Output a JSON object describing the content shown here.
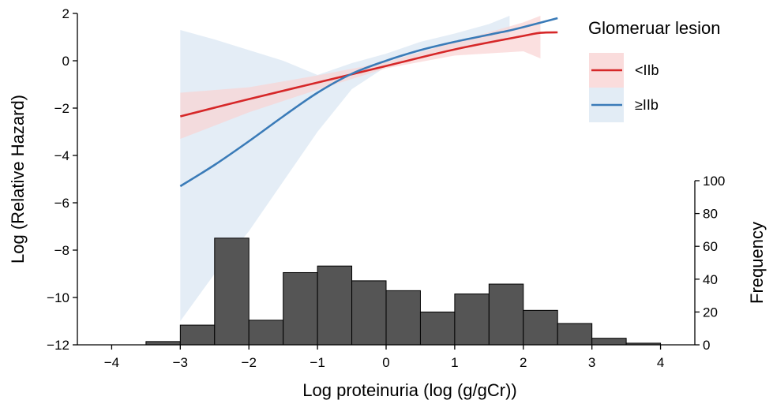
{
  "chart_data": {
    "type": "line",
    "xlabel": "Log proteinuria (log (g/gCr))",
    "ylabel": "Log (Relative Hazard)",
    "y2label": "Frequency",
    "xlim": [
      -4.5,
      4.5
    ],
    "ylim": [
      -12,
      2
    ],
    "y2lim": [
      0,
      100
    ],
    "x_ticks": [
      -4,
      -3,
      -2,
      -1,
      0,
      1,
      2,
      3,
      4
    ],
    "y_ticks": [
      2,
      0,
      -2,
      -4,
      -6,
      -8,
      -10,
      -12
    ],
    "y2_ticks": [
      100,
      80,
      60,
      40,
      20,
      0
    ],
    "grid": false,
    "legend": {
      "title": "Glomeruar lesion",
      "position": "top-right",
      "entries": [
        "<IIb",
        "≥IIb"
      ]
    },
    "series": [
      {
        "name": "<IIb",
        "color": "#d62728",
        "band_color": "#f9d3d3",
        "x": [
          -3.0,
          -2.0,
          -1.0,
          0.0,
          1.0,
          2.0,
          2.25,
          2.5
        ],
        "y": [
          -2.35,
          -1.62,
          -0.92,
          -0.22,
          0.48,
          1.05,
          1.18,
          1.2
        ],
        "lower": [
          -3.3,
          -2.18,
          -1.22,
          -0.32,
          0.22,
          0.4,
          0.1,
          null
        ],
        "upper": [
          -1.35,
          -1.12,
          -0.62,
          -0.06,
          0.78,
          1.62,
          1.9,
          null
        ]
      },
      {
        "name": "≥IIb",
        "color": "#3a7bb8",
        "band_color": "#dbe7f3",
        "x": [
          -3.0,
          -2.5,
          -2.0,
          -1.5,
          -1.0,
          -0.5,
          0.0,
          0.5,
          1.0,
          1.5,
          1.8,
          2.0,
          2.5
        ],
        "y": [
          -5.3,
          -4.4,
          -3.4,
          -2.35,
          -1.35,
          -0.55,
          0.0,
          0.45,
          0.8,
          1.1,
          1.28,
          1.42,
          1.8
        ],
        "lower": [
          -11.0,
          -9.0,
          -7.2,
          -5.1,
          -3.0,
          -1.2,
          -0.25,
          0.2,
          0.55,
          0.8,
          0.95,
          null,
          null
        ],
        "upper": [
          1.3,
          0.9,
          0.45,
          0.0,
          -0.6,
          -0.1,
          0.3,
          0.8,
          1.15,
          1.55,
          1.9,
          null,
          null
        ]
      }
    ],
    "histogram": {
      "color": "#555555",
      "edge_color": "#000000",
      "bin_edges": [
        -4.0,
        -3.5,
        -3.0,
        -2.5,
        -2.0,
        -1.5,
        -1.0,
        -0.5,
        0.0,
        0.5,
        1.0,
        1.5,
        2.0,
        2.5,
        3.0,
        3.5,
        4.0
      ],
      "counts": [
        0,
        2,
        12,
        65,
        15,
        44,
        48,
        39,
        33,
        20,
        31,
        37,
        21,
        13,
        4,
        1
      ]
    }
  }
}
